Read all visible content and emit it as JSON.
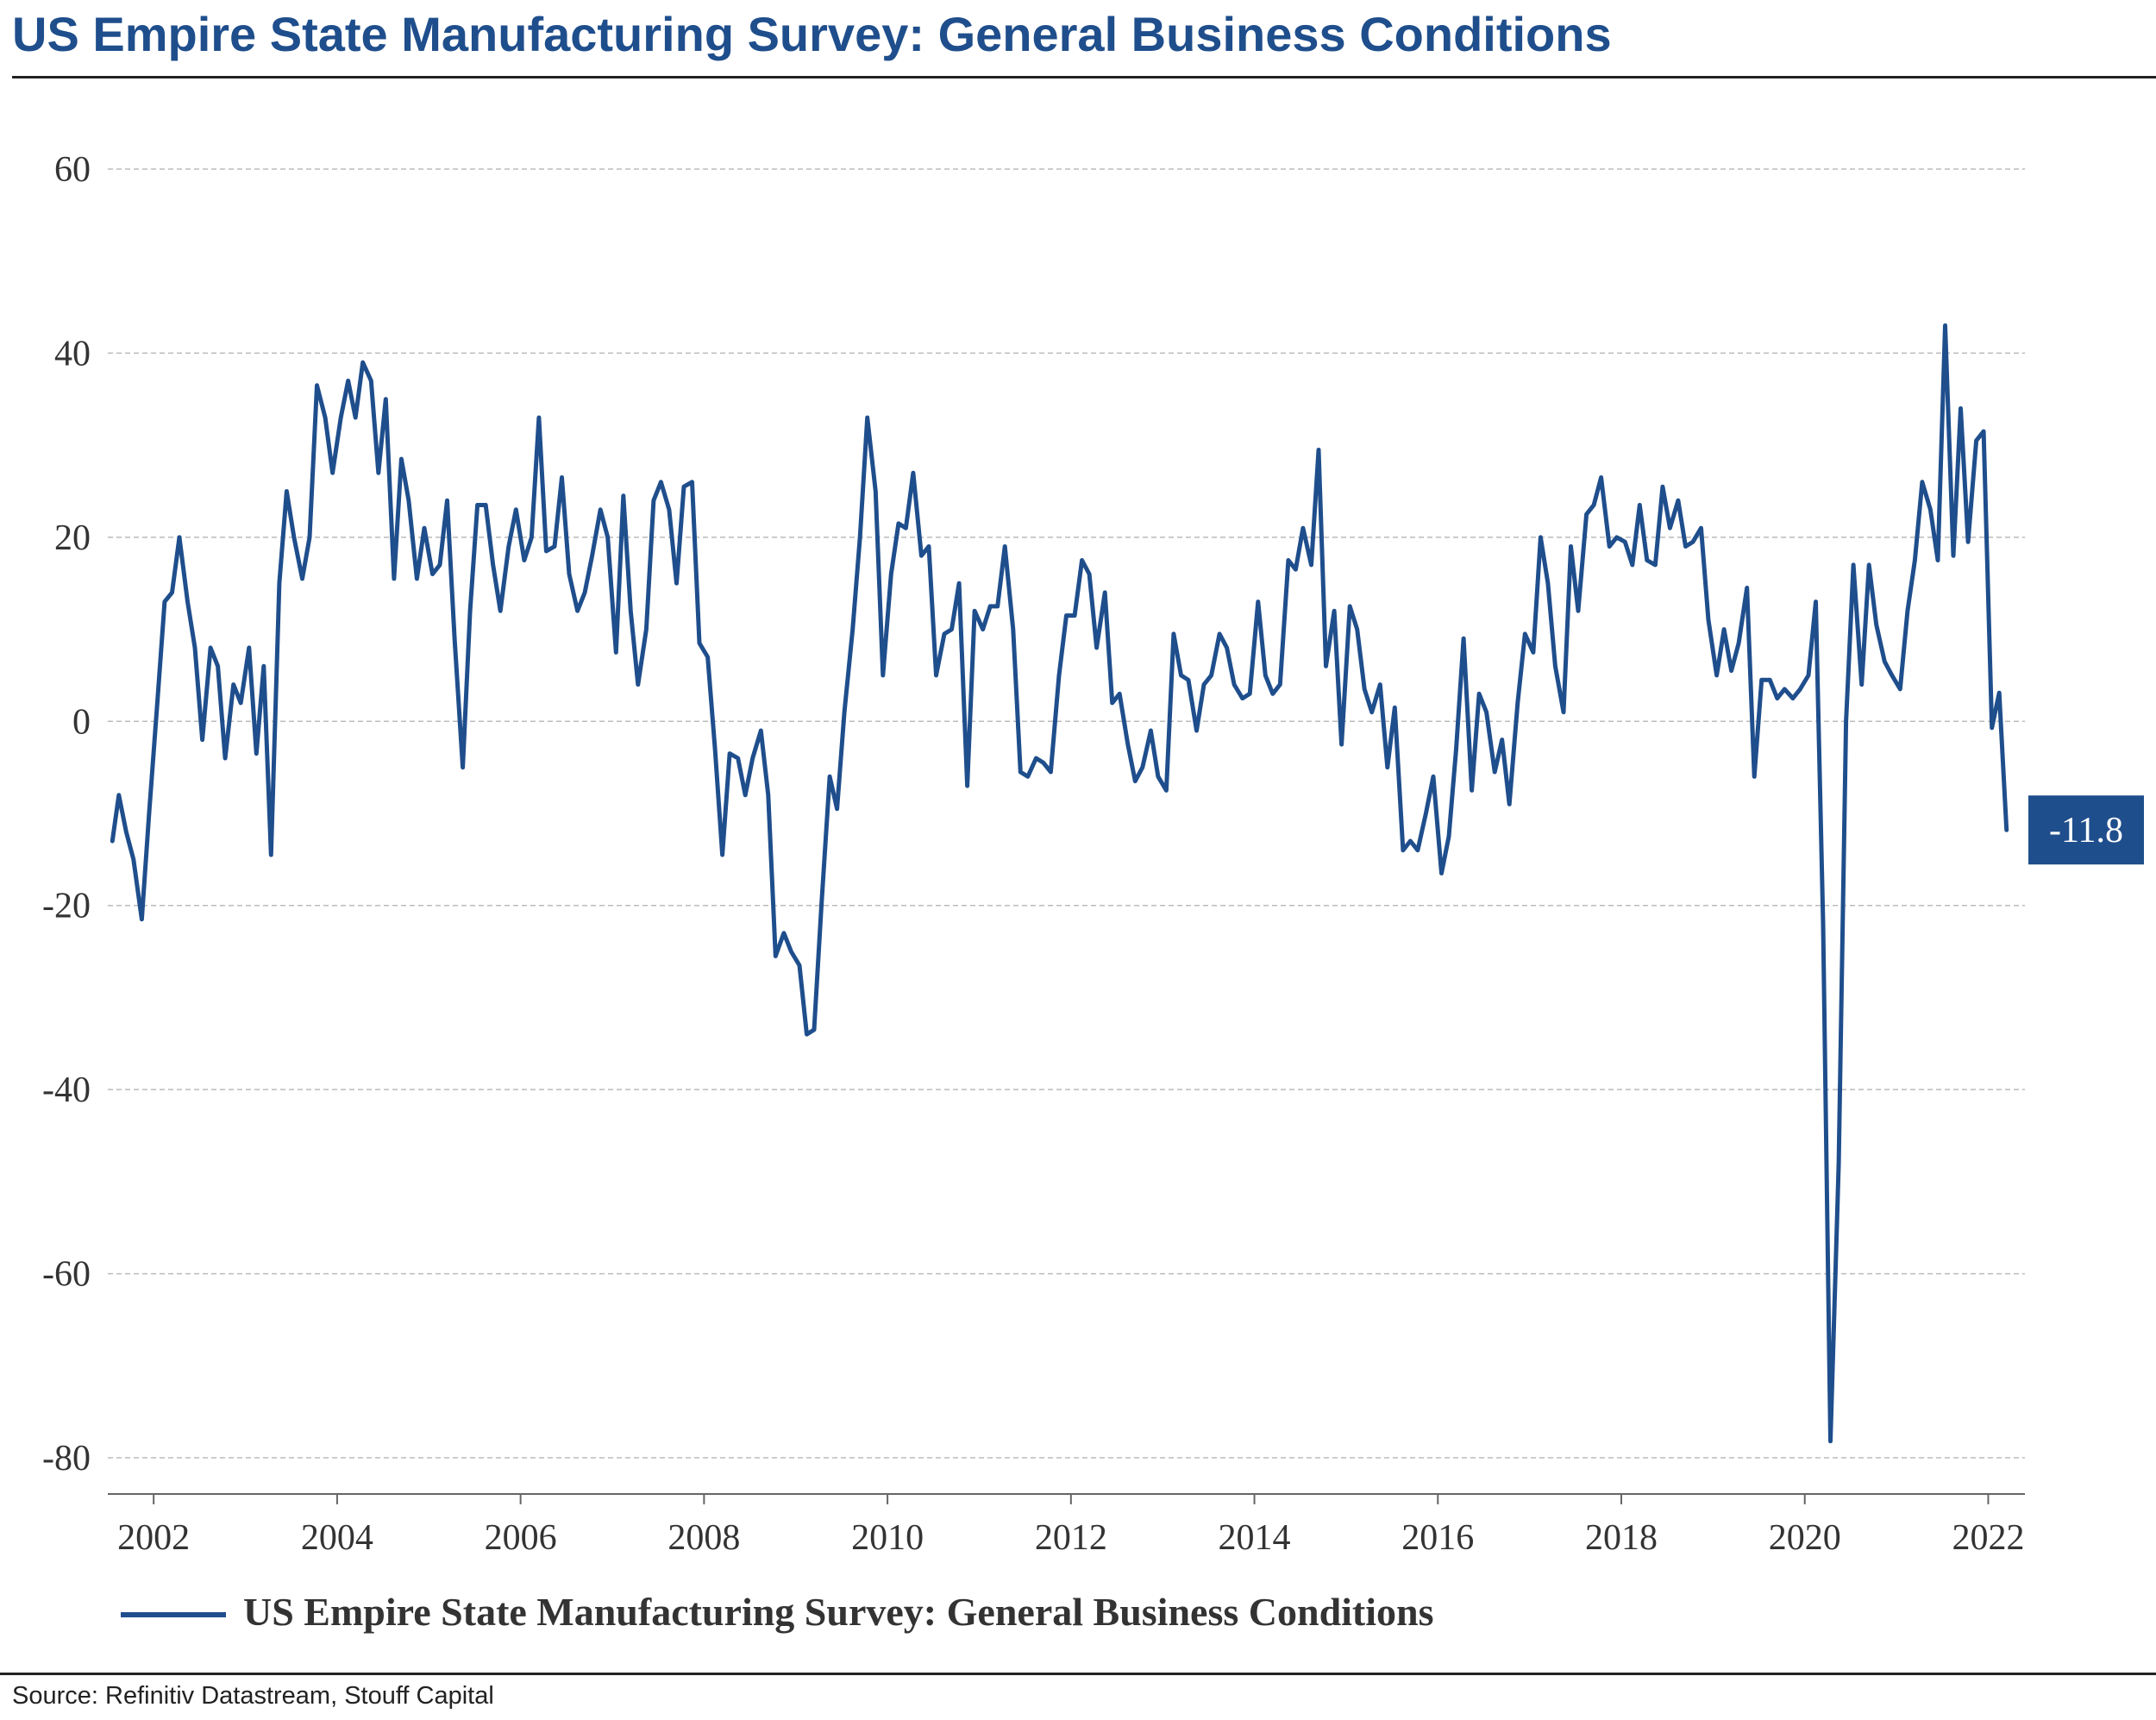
{
  "header": {
    "title": "US Empire State Manufacturing Survey: General Business Conditions"
  },
  "footer": {
    "source": "Source: Refinitiv Datastream, Stouff Capital"
  },
  "colors": {
    "title": "#1f4e8c",
    "series": "#1f4e8c",
    "grid": "#bbbbbb"
  },
  "chart_data": {
    "type": "line",
    "title": "US Empire State Manufacturing Survey: General Business Conditions",
    "xlabel": "",
    "ylabel": "",
    "ylim": [
      -80,
      60
    ],
    "xlim": [
      2001.5,
      2022.4
    ],
    "yticks": [
      60,
      40,
      20,
      0,
      -20,
      -40,
      -60,
      -80
    ],
    "yticklabels": [
      "60",
      "40",
      "20",
      "0",
      "-20",
      "-40",
      "-60",
      "-80"
    ],
    "xticks": [
      2002,
      2004,
      2006,
      2008,
      2010,
      2012,
      2014,
      2016,
      2018,
      2020,
      2022
    ],
    "xticklabels": [
      "2002",
      "2004",
      "2006",
      "2008",
      "2010",
      "2012",
      "2014",
      "2016",
      "2018",
      "2020",
      "2022"
    ],
    "grid": true,
    "legend": "bottom",
    "last_value_label": "-11.8",
    "series": [
      {
        "name": "US Empire State Manufacturing Survey: General Business Conditions",
        "points": [
          [
            2001.55,
            -13
          ],
          [
            2001.62,
            -8
          ],
          [
            2001.7,
            -12
          ],
          [
            2001.78,
            -15
          ],
          [
            2001.87,
            -21.5
          ],
          [
            2001.95,
            -10
          ],
          [
            2002.04,
            2
          ],
          [
            2002.12,
            13
          ],
          [
            2002.2,
            14
          ],
          [
            2002.28,
            20
          ],
          [
            2002.37,
            13
          ],
          [
            2002.45,
            8
          ],
          [
            2002.53,
            -2
          ],
          [
            2002.62,
            8
          ],
          [
            2002.7,
            6
          ],
          [
            2002.78,
            -4
          ],
          [
            2002.87,
            4
          ],
          [
            2002.95,
            2
          ],
          [
            2003.04,
            8
          ],
          [
            2003.12,
            -3.5
          ],
          [
            2003.2,
            6
          ],
          [
            2003.28,
            -14.5
          ],
          [
            2003.37,
            15
          ],
          [
            2003.45,
            25
          ],
          [
            2003.53,
            20
          ],
          [
            2003.62,
            15.5
          ],
          [
            2003.7,
            20
          ],
          [
            2003.78,
            36.5
          ],
          [
            2003.87,
            33
          ],
          [
            2003.95,
            27
          ],
          [
            2004.04,
            33
          ],
          [
            2004.12,
            37
          ],
          [
            2004.2,
            33
          ],
          [
            2004.28,
            39
          ],
          [
            2004.37,
            37
          ],
          [
            2004.45,
            27
          ],
          [
            2004.53,
            35
          ],
          [
            2004.62,
            15.5
          ],
          [
            2004.7,
            28.5
          ],
          [
            2004.78,
            24
          ],
          [
            2004.87,
            15.5
          ],
          [
            2004.95,
            21
          ],
          [
            2005.04,
            16
          ],
          [
            2005.12,
            17
          ],
          [
            2005.2,
            24
          ],
          [
            2005.28,
            9
          ],
          [
            2005.37,
            -5
          ],
          [
            2005.45,
            12
          ],
          [
            2005.53,
            23.5
          ],
          [
            2005.62,
            23.5
          ],
          [
            2005.7,
            17
          ],
          [
            2005.78,
            12
          ],
          [
            2005.87,
            19
          ],
          [
            2005.95,
            23
          ],
          [
            2006.04,
            17.5
          ],
          [
            2006.12,
            20
          ],
          [
            2006.2,
            33
          ],
          [
            2006.28,
            18.5
          ],
          [
            2006.37,
            19
          ],
          [
            2006.45,
            26.5
          ],
          [
            2006.53,
            16
          ],
          [
            2006.62,
            12
          ],
          [
            2006.7,
            14
          ],
          [
            2006.78,
            18
          ],
          [
            2006.87,
            23
          ],
          [
            2006.95,
            20
          ],
          [
            2007.04,
            7.5
          ],
          [
            2007.12,
            24.5
          ],
          [
            2007.2,
            12
          ],
          [
            2007.28,
            4
          ],
          [
            2007.37,
            10
          ],
          [
            2007.45,
            24
          ],
          [
            2007.53,
            26
          ],
          [
            2007.62,
            23
          ],
          [
            2007.7,
            15
          ],
          [
            2007.78,
            25.5
          ],
          [
            2007.87,
            26
          ],
          [
            2007.95,
            8.5
          ],
          [
            2008.04,
            7
          ],
          [
            2008.12,
            -3
          ],
          [
            2008.2,
            -14.5
          ],
          [
            2008.28,
            -3.5
          ],
          [
            2008.37,
            -4
          ],
          [
            2008.45,
            -8
          ],
          [
            2008.53,
            -4
          ],
          [
            2008.62,
            -1
          ],
          [
            2008.7,
            -8
          ],
          [
            2008.78,
            -25.5
          ],
          [
            2008.87,
            -23
          ],
          [
            2008.95,
            -25
          ],
          [
            2009.04,
            -26.5
          ],
          [
            2009.12,
            -34
          ],
          [
            2009.2,
            -33.5
          ],
          [
            2009.28,
            -20
          ],
          [
            2009.37,
            -6
          ],
          [
            2009.45,
            -9.5
          ],
          [
            2009.53,
            1
          ],
          [
            2009.62,
            10
          ],
          [
            2009.7,
            20
          ],
          [
            2009.78,
            33
          ],
          [
            2009.87,
            25
          ],
          [
            2009.95,
            5
          ],
          [
            2010.04,
            16
          ],
          [
            2010.12,
            21.5
          ],
          [
            2010.2,
            21
          ],
          [
            2010.28,
            27
          ],
          [
            2010.37,
            18
          ],
          [
            2010.45,
            19
          ],
          [
            2010.53,
            5
          ],
          [
            2010.62,
            9.5
          ],
          [
            2010.7,
            10
          ],
          [
            2010.78,
            15
          ],
          [
            2010.87,
            -7
          ],
          [
            2010.95,
            12
          ],
          [
            2011.04,
            10
          ],
          [
            2011.12,
            12.5
          ],
          [
            2011.2,
            12.5
          ],
          [
            2011.28,
            19
          ],
          [
            2011.37,
            10
          ],
          [
            2011.45,
            -5.5
          ],
          [
            2011.53,
            -6
          ],
          [
            2011.62,
            -4
          ],
          [
            2011.7,
            -4.5
          ],
          [
            2011.78,
            -5.5
          ],
          [
            2011.87,
            5
          ],
          [
            2011.95,
            11.5
          ],
          [
            2012.04,
            11.5
          ],
          [
            2012.12,
            17.5
          ],
          [
            2012.2,
            16
          ],
          [
            2012.28,
            8
          ],
          [
            2012.37,
            14
          ],
          [
            2012.45,
            2
          ],
          [
            2012.53,
            3
          ],
          [
            2012.62,
            -2.5
          ],
          [
            2012.7,
            -6.5
          ],
          [
            2012.78,
            -5
          ],
          [
            2012.87,
            -1
          ],
          [
            2012.95,
            -6
          ],
          [
            2013.04,
            -7.5
          ],
          [
            2013.12,
            9.5
          ],
          [
            2013.2,
            5
          ],
          [
            2013.28,
            4.5
          ],
          [
            2013.37,
            -1
          ],
          [
            2013.45,
            4
          ],
          [
            2013.53,
            5
          ],
          [
            2013.62,
            9.5
          ],
          [
            2013.7,
            8
          ],
          [
            2013.78,
            4
          ],
          [
            2013.87,
            2.5
          ],
          [
            2013.95,
            3
          ],
          [
            2014.04,
            13
          ],
          [
            2014.12,
            5
          ],
          [
            2014.2,
            3
          ],
          [
            2014.28,
            4
          ],
          [
            2014.37,
            17.5
          ],
          [
            2014.45,
            16.5
          ],
          [
            2014.53,
            21
          ],
          [
            2014.62,
            17
          ],
          [
            2014.7,
            29.5
          ],
          [
            2014.78,
            6
          ],
          [
            2014.87,
            12
          ],
          [
            2014.95,
            -2.5
          ],
          [
            2015.04,
            12.5
          ],
          [
            2015.12,
            10
          ],
          [
            2015.2,
            3.5
          ],
          [
            2015.28,
            1
          ],
          [
            2015.37,
            4
          ],
          [
            2015.45,
            -5
          ],
          [
            2015.53,
            1.5
          ],
          [
            2015.62,
            -14
          ],
          [
            2015.7,
            -13
          ],
          [
            2015.78,
            -14
          ],
          [
            2015.87,
            -10
          ],
          [
            2015.95,
            -6
          ],
          [
            2016.04,
            -16.5
          ],
          [
            2016.12,
            -12.5
          ],
          [
            2016.2,
            -3
          ],
          [
            2016.28,
            9
          ],
          [
            2016.37,
            -7.5
          ],
          [
            2016.45,
            3
          ],
          [
            2016.53,
            1
          ],
          [
            2016.62,
            -5.5
          ],
          [
            2016.7,
            -2
          ],
          [
            2016.78,
            -9
          ],
          [
            2016.87,
            2
          ],
          [
            2016.95,
            9.5
          ],
          [
            2017.04,
            7.5
          ],
          [
            2017.12,
            20
          ],
          [
            2017.2,
            15
          ],
          [
            2017.28,
            6
          ],
          [
            2017.37,
            1
          ],
          [
            2017.45,
            19
          ],
          [
            2017.53,
            12
          ],
          [
            2017.62,
            22.5
          ],
          [
            2017.7,
            23.5
          ],
          [
            2017.78,
            26.5
          ],
          [
            2017.87,
            19
          ],
          [
            2017.95,
            20
          ],
          [
            2018.04,
            19.5
          ],
          [
            2018.12,
            17
          ],
          [
            2018.2,
            23.5
          ],
          [
            2018.28,
            17.5
          ],
          [
            2018.37,
            17
          ],
          [
            2018.45,
            25.5
          ],
          [
            2018.53,
            21
          ],
          [
            2018.62,
            24
          ],
          [
            2018.7,
            19
          ],
          [
            2018.78,
            19.5
          ],
          [
            2018.87,
            21
          ],
          [
            2018.95,
            11
          ],
          [
            2019.04,
            5
          ],
          [
            2019.12,
            10
          ],
          [
            2019.2,
            5.5
          ],
          [
            2019.28,
            8.5
          ],
          [
            2019.37,
            14.5
          ],
          [
            2019.45,
            -6
          ],
          [
            2019.53,
            4.5
          ],
          [
            2019.62,
            4.5
          ],
          [
            2019.7,
            2.5
          ],
          [
            2019.78,
            3.5
          ],
          [
            2019.87,
            2.5
          ],
          [
            2019.95,
            3.5
          ],
          [
            2020.04,
            5
          ],
          [
            2020.12,
            13
          ],
          [
            2020.2,
            -22
          ],
          [
            2020.28,
            -78.2
          ],
          [
            2020.37,
            -48
          ],
          [
            2020.45,
            0
          ],
          [
            2020.53,
            17
          ],
          [
            2020.62,
            4
          ],
          [
            2020.7,
            17
          ],
          [
            2020.78,
            10.5
          ],
          [
            2020.87,
            6.5
          ],
          [
            2020.95,
            5
          ],
          [
            2021.04,
            3.5
          ],
          [
            2021.12,
            12
          ],
          [
            2021.2,
            17.5
          ],
          [
            2021.28,
            26
          ],
          [
            2021.37,
            23
          ],
          [
            2021.45,
            17.5
          ],
          [
            2021.53,
            43
          ],
          [
            2021.62,
            18
          ],
          [
            2021.7,
            34
          ],
          [
            2021.78,
            19.5
          ],
          [
            2021.87,
            30.5
          ],
          [
            2021.95,
            31.5
          ],
          [
            2022.04,
            -0.7
          ],
          [
            2022.12,
            3.1
          ],
          [
            2022.2,
            -11.8
          ]
        ]
      }
    ]
  }
}
